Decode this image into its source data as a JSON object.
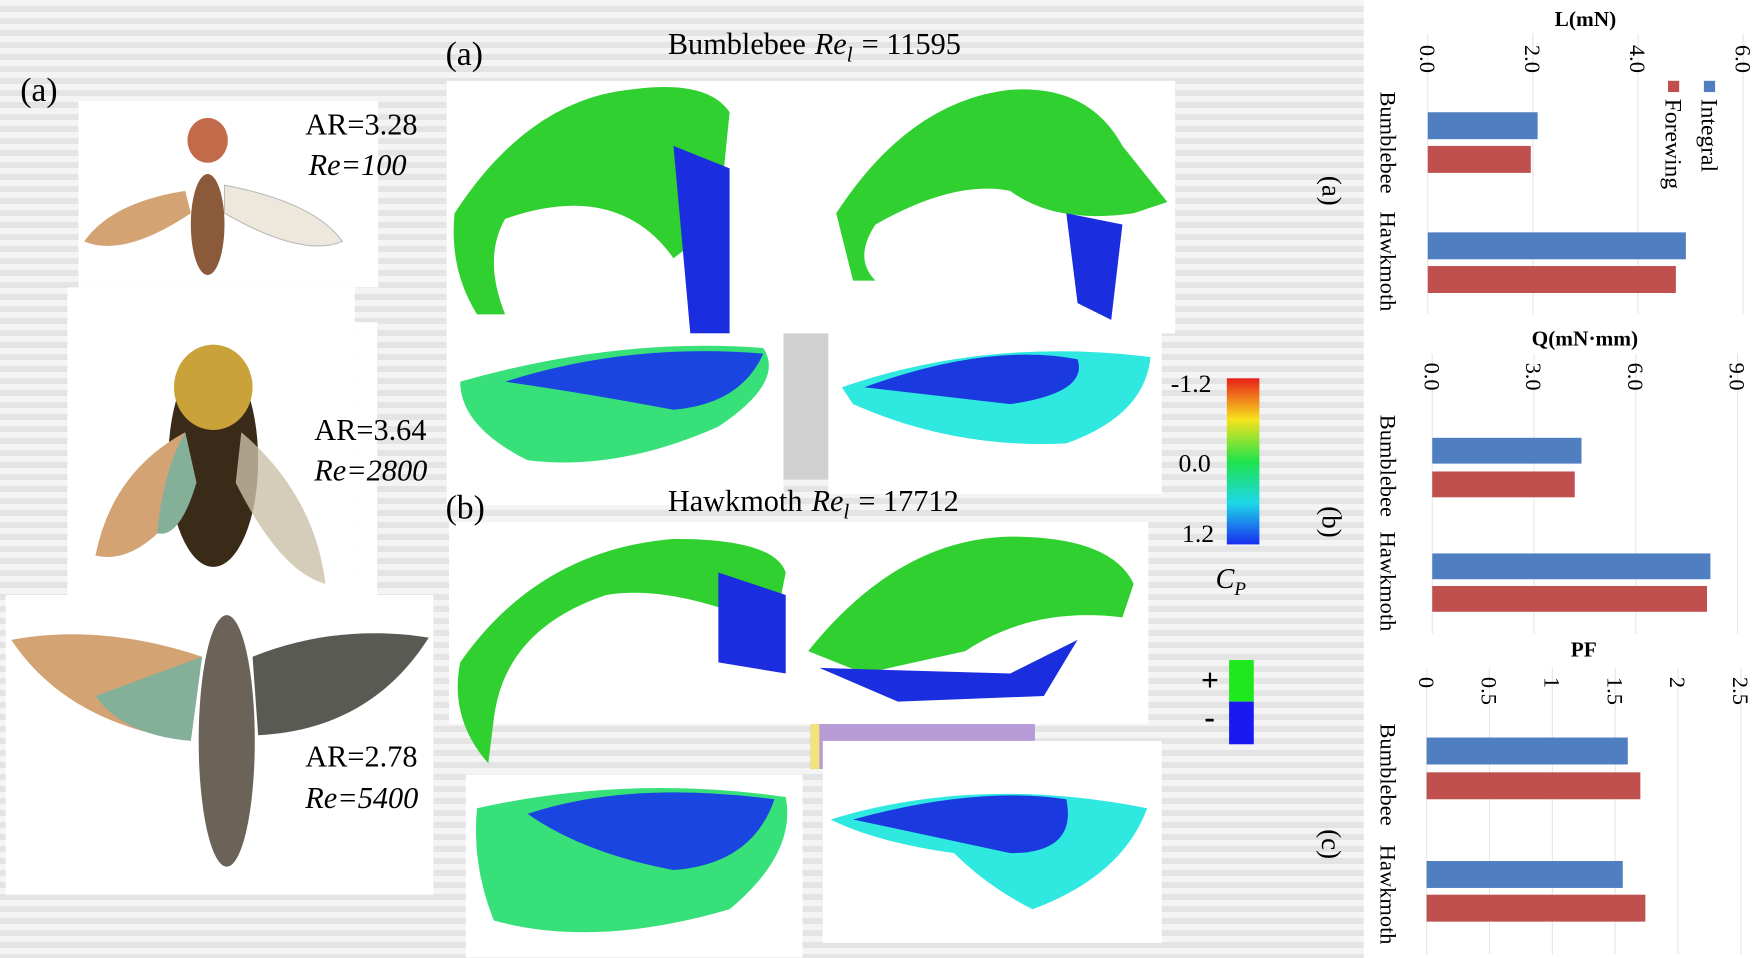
{
  "left_panel": {
    "label": "(a)",
    "insects": [
      {
        "ar": "AR=3.28",
        "re": "Re=100"
      },
      {
        "ar": "AR=3.64",
        "re": "Re=2800"
      },
      {
        "ar": "AR=2.78",
        "re": "Re=5400"
      }
    ]
  },
  "middle_panel": {
    "panels": [
      {
        "label": "(a)",
        "name": "Bumblebee",
        "symbol": "Re",
        "subscript": "l",
        "value": "= 11595"
      },
      {
        "label": "(b)",
        "name": "Hawkmoth",
        "symbol": "Re",
        "subscript": "l",
        "value": "= 17712"
      }
    ],
    "colorbar": {
      "ticks": [
        "-1.2",
        "0.0",
        "1.2"
      ],
      "symbol": "C",
      "subscript": "P"
    },
    "sign_legend": [
      "+",
      "-"
    ]
  },
  "chart_data": [
    {
      "type": "bar",
      "label": "(a)",
      "title": "L(mN)",
      "categories": [
        "Bumblebee",
        "Hawkmoth"
      ],
      "series": [
        {
          "name": "Integral",
          "color": "#4f7fc1",
          "values": [
            2.09,
            4.91
          ]
        },
        {
          "name": "Forewing",
          "color": "#c0504d",
          "values": [
            1.96,
            4.72
          ]
        }
      ],
      "xlim": [
        0,
        6
      ],
      "xticks": [
        {
          "value": 0,
          "label": "0.0"
        },
        {
          "value": 2,
          "label": "2.0"
        },
        {
          "value": 4,
          "label": "4.0"
        },
        {
          "value": 6,
          "label": "6.0"
        }
      ]
    },
    {
      "type": "bar",
      "label": "(b)",
      "title": "Q(mN·mm)",
      "categories": [
        "Bumblebee",
        "Hawkmoth"
      ],
      "series": [
        {
          "name": "Integral",
          "color": "#4f7fc1",
          "values": [
            4.4,
            8.2
          ]
        },
        {
          "name": "Forewing",
          "color": "#c0504d",
          "values": [
            4.2,
            8.1
          ]
        }
      ],
      "xlim": [
        0,
        9
      ],
      "xticks": [
        {
          "value": 0,
          "label": "0.0"
        },
        {
          "value": 3,
          "label": "3.0"
        },
        {
          "value": 6,
          "label": "6.0"
        },
        {
          "value": 9,
          "label": "9.0"
        }
      ]
    },
    {
      "type": "bar",
      "label": "(c)",
      "title": "PF",
      "categories": [
        "Bumblebee",
        "Hawkmoth"
      ],
      "series": [
        {
          "name": "Integral",
          "color": "#4f7fc1",
          "values": [
            1.6,
            1.56
          ]
        },
        {
          "name": "Forewing",
          "color": "#c0504d",
          "values": [
            1.7,
            1.74
          ]
        }
      ],
      "xlim": [
        0,
        2.5
      ],
      "xticks": [
        0,
        0.5,
        1,
        1.5,
        2,
        2.5
      ]
    }
  ]
}
